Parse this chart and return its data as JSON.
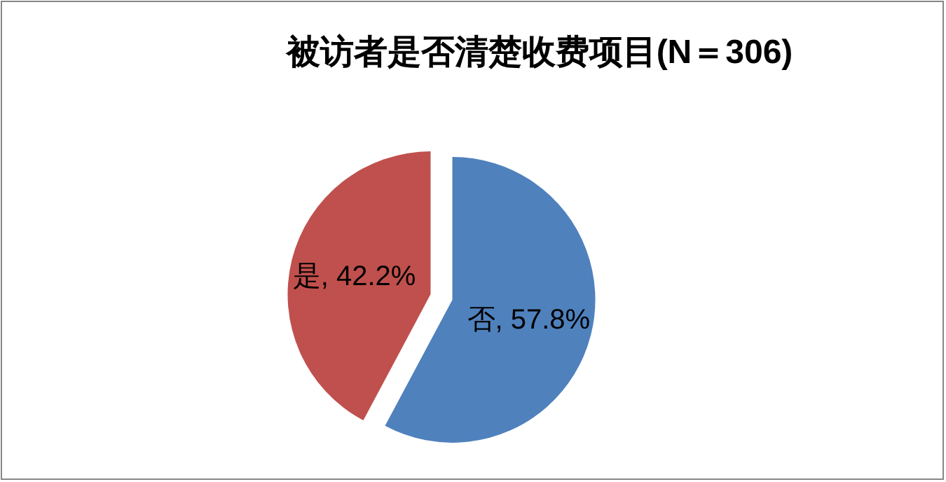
{
  "chart_data": {
    "type": "pie",
    "title": "被访者是否清楚收费项目(N＝306)",
    "categories": [
      "否",
      "是"
    ],
    "values": [
      57.8,
      42.2
    ],
    "value_labels": [
      "57.8%",
      "42.2%"
    ],
    "colors": [
      "#4f81bd",
      "#c0504d"
    ]
  }
}
